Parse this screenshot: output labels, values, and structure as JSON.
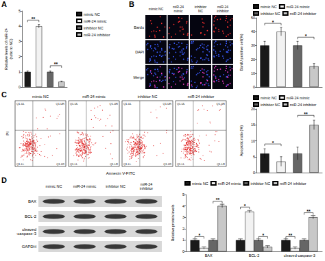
{
  "chart_data": [
    {
      "type": "bar",
      "categories": [
        "mimic NC",
        "miR-24 mimic",
        "inhibitor NC",
        "miR-24 inhibitor"
      ],
      "values": [
        1.0,
        4.0,
        1.0,
        0.35
      ],
      "errors": [
        0.05,
        0.12,
        0.05,
        0.04
      ],
      "colors": [
        "#1a1a1a",
        "#f2f2f2",
        "#666666",
        "#c8c8c8"
      ],
      "ylabel": "Relative levels of miR-24\n(ratio to NC)",
      "ylim": [
        0,
        5
      ],
      "yticks": [
        0,
        1,
        2,
        3,
        4,
        5
      ],
      "grid": false,
      "legend": "right",
      "tick_labels": "y",
      "significance": [
        {
          "pair": [
            0,
            1
          ],
          "label": "**",
          "y": 4.4
        },
        {
          "pair": [
            2,
            3
          ],
          "label": "**",
          "y": 1.4
        }
      ]
    },
    {
      "type": "bar",
      "categories": [
        "mimic NC",
        "miR-24 mimic",
        "inhibitor NC",
        "miR-24 inhibitor"
      ],
      "values": [
        30,
        40,
        30,
        15
      ],
      "errors": [
        3,
        3,
        3,
        2
      ],
      "colors": [
        "#1a1a1a",
        "#f2f2f2",
        "#666666",
        "#c8c8c8"
      ],
      "ylabel": "BardU positive cell(%)",
      "ylim": [
        0,
        50
      ],
      "yticks": [
        0,
        10,
        20,
        30,
        40,
        50
      ],
      "grid": false,
      "legend": "top",
      "tick_labels": "y",
      "significance": [
        {
          "pair": [
            0,
            1
          ],
          "label": "*",
          "y": 46
        },
        {
          "pair": [
            2,
            3
          ],
          "label": "*",
          "y": 36
        }
      ]
    },
    {
      "type": "bar",
      "categories": [
        "mimic NC",
        "miR-24 mimic",
        "inhibitor NC",
        "miR-24 inhibitor"
      ],
      "values": [
        6,
        3.5,
        6,
        15
      ],
      "errors": [
        1.5,
        1.5,
        2,
        1.5
      ],
      "colors": [
        "#1a1a1a",
        "#f2f2f2",
        "#666666",
        "#c8c8c8"
      ],
      "ylabel": "Apoptotic ratio (%)",
      "ylim": [
        0,
        20
      ],
      "yticks": [
        0,
        5,
        10,
        15,
        20
      ],
      "grid": false,
      "legend": "top",
      "tick_labels": "y",
      "significance": [
        {
          "pair": [
            0,
            1
          ],
          "label": "*",
          "y": 9
        },
        {
          "pair": [
            2,
            3
          ],
          "label": "**",
          "y": 18
        }
      ]
    },
    {
      "type": "bar",
      "categories": [
        "BAX",
        "BCL-2",
        "cleaved-caspase-3"
      ],
      "series": [
        {
          "name": "mimic NC",
          "color": "#1a1a1a",
          "values": [
            1.0,
            1.0,
            1.0
          ],
          "errors": [
            0.1,
            0.1,
            0.1
          ]
        },
        {
          "name": "miR-24 mimic",
          "color": "#f2f2f2",
          "values": [
            0.3,
            3.5,
            0.3
          ],
          "errors": [
            0.1,
            0.1,
            0.1
          ]
        },
        {
          "name": "inhibitor NC",
          "color": "#666666",
          "values": [
            1.0,
            1.0,
            1.0
          ],
          "errors": [
            0.1,
            0.1,
            0.1
          ]
        },
        {
          "name": "miR-24 inhibitor",
          "color": "#c8c8c8",
          "values": [
            4.0,
            0.4,
            3.0
          ],
          "errors": [
            0.15,
            0.1,
            0.15
          ]
        }
      ],
      "ylabel": "Relative protein levels",
      "ylim": [
        0,
        5
      ],
      "yticks": [
        0,
        1,
        2,
        3,
        4,
        5
      ],
      "grid": false,
      "legend": "top",
      "significance": [
        {
          "category": 0,
          "pair": [
            0,
            1
          ],
          "label": "*",
          "y": 1.3
        },
        {
          "category": 0,
          "pair": [
            2,
            3
          ],
          "label": "**",
          "y": 4.4
        },
        {
          "category": 1,
          "pair": [
            0,
            1
          ],
          "label": "*",
          "y": 3.9
        },
        {
          "category": 1,
          "pair": [
            2,
            3
          ],
          "label": "*",
          "y": 1.3
        },
        {
          "category": 2,
          "pair": [
            0,
            1
          ],
          "label": "**",
          "y": 1.3
        },
        {
          "category": 2,
          "pair": [
            2,
            3
          ],
          "label": "**",
          "y": 3.4
        }
      ]
    }
  ],
  "panel_labels": [
    "A",
    "B",
    "C",
    "D"
  ],
  "image_panels": {
    "B": {
      "columns": [
        "mimic NC",
        "miR-24 mimic",
        "inhibitor NC",
        "miR-24 inhibitor"
      ],
      "rows": [
        "Bardu",
        "DAPI",
        "Merge"
      ]
    },
    "C": {
      "columns": [
        "mimic NC",
        "miR-24 mimic",
        "inhibitor NC",
        "miR-24 inhibitor"
      ],
      "quadrants": [
        "Q1-UL",
        "Q1-UR",
        "Q1-LL",
        "Q1-LR"
      ],
      "ylabel": "PI",
      "xlabel": "Annexin V-FITC"
    },
    "D": {
      "columns": [
        "mimic NC",
        "miR-24 mimic",
        "inhibitor NC",
        "miR-24 inhibitor"
      ],
      "rows": [
        "BAX",
        "BCL-2",
        "cleaved-caspase-3",
        "GAPDH"
      ]
    }
  }
}
